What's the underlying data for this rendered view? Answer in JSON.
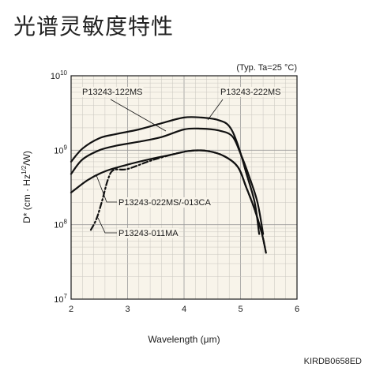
{
  "page": {
    "title": "光谱灵敏度特性",
    "code": "KIRDB0658ED"
  },
  "chart_data": {
    "type": "line",
    "title": "光谱灵敏度特性",
    "xlabel": "Wavelength (μm)",
    "ylabel": "D* (cm · Hz1/2/W)",
    "ylabel_parts": {
      "prefix": "D* (cm · Hz",
      "sup": "1/2",
      "suffix": "/W)"
    },
    "note": "(Typ. Ta=25 °C)",
    "xlim": [
      2,
      6
    ],
    "ylim": [
      10000000,
      10000000000
    ],
    "y_scale": "log",
    "x_ticks": [
      "2",
      "3",
      "4",
      "5",
      "6"
    ],
    "y_ticks": [
      {
        "base": "10",
        "exp": "10",
        "value": 10000000000
      },
      {
        "base": "10",
        "exp": "9",
        "value": 1000000000
      },
      {
        "base": "10",
        "exp": "8",
        "value": 100000000
      },
      {
        "base": "10",
        "exp": "7",
        "value": 10000000
      }
    ],
    "grid": true,
    "legend": "inline labels",
    "series": [
      {
        "name": "P13243-222MS",
        "style": "solid",
        "points": [
          [
            2.0,
            700000000
          ],
          [
            2.2,
            1050000000
          ],
          [
            2.5,
            1450000000
          ],
          [
            2.8,
            1650000000
          ],
          [
            3.2,
            1900000000
          ],
          [
            3.6,
            2300000000
          ],
          [
            4.0,
            2750000000
          ],
          [
            4.3,
            2750000000
          ],
          [
            4.6,
            2550000000
          ],
          [
            4.8,
            2100000000
          ],
          [
            4.95,
            1200000000
          ],
          [
            5.1,
            500000000
          ],
          [
            5.25,
            200000000
          ],
          [
            5.33,
            75000000
          ]
        ]
      },
      {
        "name": "P13243-122MS",
        "style": "solid",
        "points": [
          [
            2.0,
            480000000
          ],
          [
            2.2,
            750000000
          ],
          [
            2.5,
            1000000000
          ],
          [
            2.8,
            1150000000
          ],
          [
            3.2,
            1300000000
          ],
          [
            3.6,
            1500000000
          ],
          [
            4.0,
            1900000000
          ],
          [
            4.3,
            1950000000
          ],
          [
            4.6,
            1850000000
          ],
          [
            4.85,
            1550000000
          ],
          [
            5.0,
            900000000
          ],
          [
            5.15,
            450000000
          ],
          [
            5.3,
            200000000
          ],
          [
            5.4,
            75000000
          ]
        ]
      },
      {
        "name": "P13243-022MS/-013CA",
        "style": "solid",
        "points": [
          [
            2.0,
            270000000
          ],
          [
            2.3,
            400000000
          ],
          [
            2.6,
            520000000
          ],
          [
            3.0,
            640000000
          ],
          [
            3.4,
            760000000
          ],
          [
            3.8,
            880000000
          ],
          [
            4.1,
            980000000
          ],
          [
            4.4,
            980000000
          ],
          [
            4.7,
            840000000
          ],
          [
            4.95,
            600000000
          ],
          [
            5.1,
            320000000
          ],
          [
            5.25,
            160000000
          ],
          [
            5.38,
            75000000
          ],
          [
            5.45,
            42000000
          ]
        ]
      },
      {
        "name": "P13243-011MA",
        "style": "dash-dot",
        "points": [
          [
            2.35,
            85000000
          ],
          [
            2.45,
            120000000
          ],
          [
            2.55,
            210000000
          ],
          [
            2.65,
            400000000
          ],
          [
            2.75,
            540000000
          ],
          [
            3.0,
            560000000
          ],
          [
            3.4,
            720000000
          ],
          [
            3.8,
            880000000
          ],
          [
            4.1,
            980000000
          ],
          [
            4.4,
            980000000
          ],
          [
            4.7,
            840000000
          ],
          [
            4.95,
            600000000
          ],
          [
            5.1,
            320000000
          ],
          [
            5.25,
            160000000
          ],
          [
            5.38,
            75000000
          ],
          [
            5.45,
            42000000
          ]
        ]
      }
    ]
  }
}
